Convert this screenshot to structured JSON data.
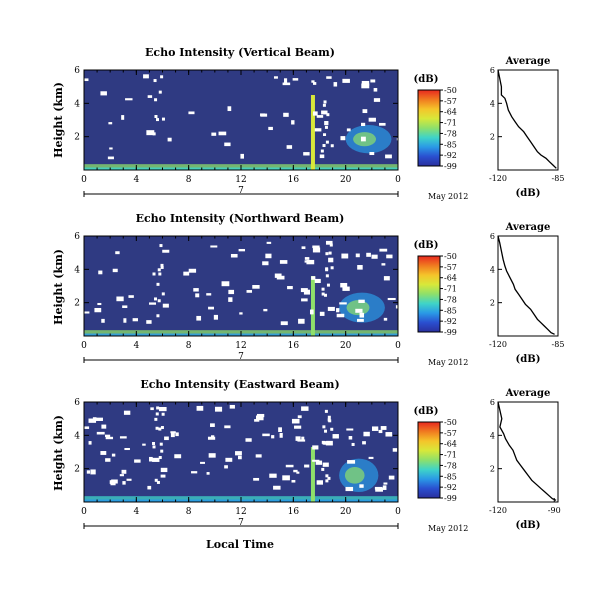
{
  "figure": {
    "xlabel": "Local Time",
    "date_label": "May 2012",
    "colorbar_unit": "(dB)",
    "colorbar_ticks": [
      "-50",
      "-57",
      "-64",
      "-71",
      "-78",
      "-85",
      "-92",
      "-99"
    ],
    "colorbar_colors": [
      "#e8281f",
      "#f07a20",
      "#f4c42a",
      "#d8e83a",
      "#8ee06a",
      "#3fd4c8",
      "#2a9ae6",
      "#2a4fd0",
      "#2a2f9e"
    ],
    "background_color": "#2f3a82",
    "noise_color": "#ffffff",
    "panel_x_ticks": [
      "0",
      "4",
      "8",
      "12",
      "16",
      "20",
      "0"
    ],
    "panel_y_ticks": [
      "6",
      "4",
      "2"
    ],
    "day_label": "7",
    "avg_title": "Average"
  },
  "chart_data": [
    {
      "type": "heatmap",
      "title": "Echo Intensity (Vertical Beam)",
      "xlabel": "",
      "ylabel": "Height (km)",
      "xlim": [
        0,
        24
      ],
      "ylim": [
        0,
        6
      ],
      "xticks": [
        0,
        4,
        8,
        12,
        16,
        20,
        24
      ],
      "yticks": [
        2,
        4,
        6
      ],
      "colorbar": {
        "label": "(dB)",
        "range": [
          -99,
          -50
        ]
      },
      "features": {
        "surface_layer_db": -80,
        "convective_spike": {
          "time_hr": 17.5,
          "top_km": 4.5,
          "db": -70
        },
        "cloud_patch": {
          "time_range_hr": [
            20.0,
            23.5
          ],
          "height_range_km": [
            1.0,
            2.7
          ],
          "db": -85
        }
      },
      "average_profile": {
        "title": "Average",
        "xlabel": "(dB)",
        "x_ticks": [
          "-120",
          "-85"
        ],
        "y_ticks": [
          "6",
          "4",
          "2"
        ],
        "xlim": [
          -120,
          -85
        ],
        "ylim": [
          0,
          6
        ],
        "x": [
          -120,
          -119,
          -118,
          -118,
          -116,
          -115,
          -114,
          -112,
          -110,
          -108,
          -105,
          -103,
          -101,
          -99,
          -97,
          -95,
          -92,
          -90,
          -88,
          -86
        ],
        "y": [
          6.0,
          5.5,
          5.0,
          4.5,
          4.3,
          4.0,
          3.6,
          3.2,
          2.9,
          2.6,
          2.3,
          2.0,
          1.7,
          1.4,
          1.1,
          0.9,
          0.7,
          0.5,
          0.3,
          0.1
        ]
      }
    },
    {
      "type": "heatmap",
      "title": "Echo Intensity (Northward Beam)",
      "xlabel": "",
      "ylabel": "Height (km)",
      "xlim": [
        0,
        24
      ],
      "ylim": [
        0,
        6
      ],
      "xticks": [
        0,
        4,
        8,
        12,
        16,
        20,
        24
      ],
      "yticks": [
        2,
        4,
        6
      ],
      "colorbar": {
        "label": "(dB)",
        "range": [
          -99,
          -50
        ]
      },
      "features": {
        "surface_layer_db": -85,
        "convective_spike": {
          "time_hr": 17.5,
          "top_km": 3.6,
          "db": -72
        },
        "cloud_patch": {
          "time_range_hr": [
            19.5,
            23.0
          ],
          "height_range_km": [
            0.8,
            2.6
          ],
          "db": -88
        }
      },
      "average_profile": {
        "title": "Average",
        "xlabel": "(dB)",
        "x_ticks": [
          "-120",
          "-85"
        ],
        "y_ticks": [
          "6",
          "4",
          "2"
        ],
        "xlim": [
          -120,
          -85
        ],
        "ylim": [
          0,
          6
        ],
        "x": [
          -120,
          -119,
          -118,
          -117,
          -116,
          -115,
          -113,
          -111,
          -110,
          -108,
          -106,
          -104,
          -101,
          -99,
          -97,
          -95,
          -93,
          -91,
          -89,
          -87
        ],
        "y": [
          6.0,
          5.6,
          5.1,
          4.6,
          4.2,
          3.9,
          3.5,
          3.1,
          2.8,
          2.5,
          2.2,
          1.9,
          1.6,
          1.3,
          1.0,
          0.8,
          0.6,
          0.4,
          0.2,
          0.1
        ]
      }
    },
    {
      "type": "heatmap",
      "title": "Echo Intensity (Eastward Beam)",
      "xlabel": "",
      "ylabel": "Height (km)",
      "xlim": [
        0,
        24
      ],
      "ylim": [
        0,
        6
      ],
      "xticks": [
        0,
        4,
        8,
        12,
        16,
        20,
        24
      ],
      "yticks": [
        2,
        4,
        6
      ],
      "colorbar": {
        "label": "(dB)",
        "range": [
          -99,
          -50
        ]
      },
      "features": {
        "surface_layer_db": -88,
        "convective_spike": {
          "time_hr": 17.5,
          "top_km": 3.3,
          "db": -75
        },
        "cloud_patch": {
          "time_range_hr": [
            19.5,
            22.5
          ],
          "height_range_km": [
            0.6,
            2.6
          ],
          "db": -86
        }
      },
      "average_profile": {
        "title": "Average",
        "xlabel": "(dB)",
        "x_ticks": [
          "-120",
          "-90"
        ],
        "y_ticks": [
          "6",
          "4",
          "2"
        ],
        "xlim": [
          -120,
          -88
        ],
        "ylim": [
          0,
          6
        ],
        "x": [
          -120,
          -119,
          -118,
          -119,
          -117,
          -116,
          -114,
          -112,
          -111,
          -110,
          -108,
          -106,
          -104,
          -102,
          -99,
          -97,
          -95,
          -93,
          -91,
          -89
        ],
        "y": [
          6.0,
          5.5,
          5.0,
          4.5,
          4.1,
          3.8,
          3.4,
          3.1,
          2.8,
          2.5,
          2.2,
          1.9,
          1.6,
          1.3,
          1.0,
          0.8,
          0.6,
          0.4,
          0.2,
          0.1
        ]
      }
    }
  ]
}
